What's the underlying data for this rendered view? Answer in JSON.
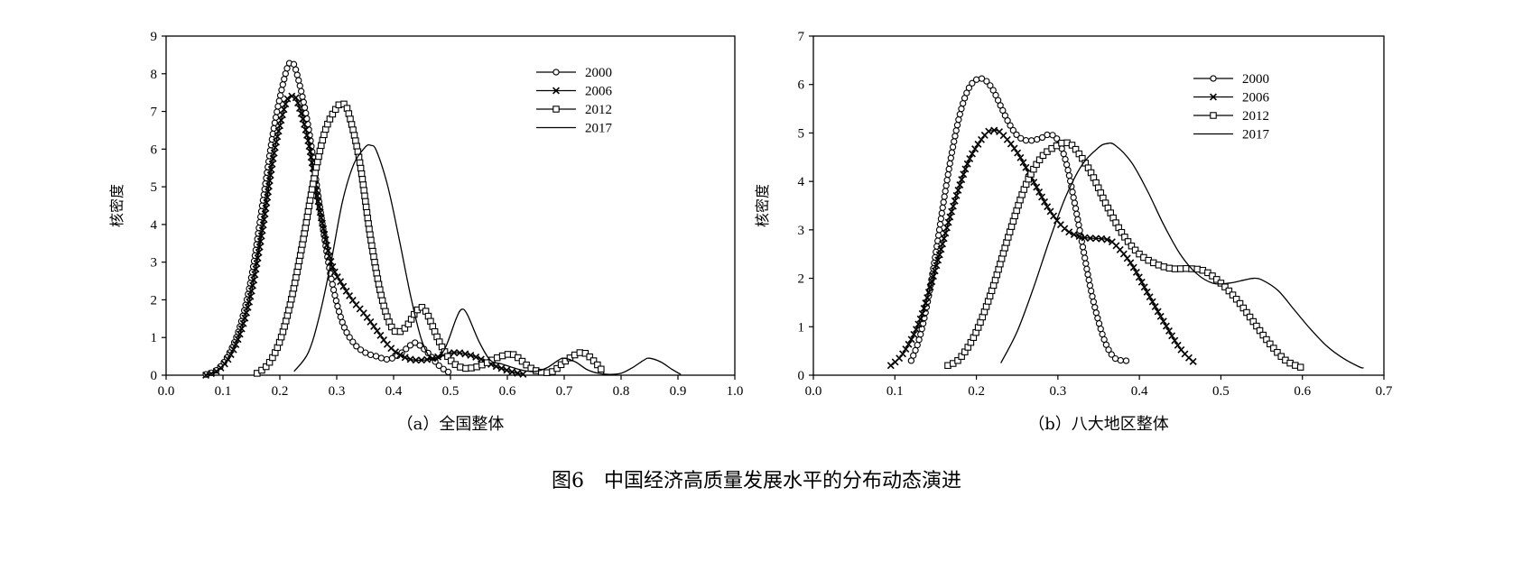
{
  "figure_caption": "图6　中国经济高质量发展水平的分布动态演进",
  "chart_data": [
    {
      "type": "line",
      "subcaption": "（a）全国整体",
      "ylabel": "核密度",
      "xlabel": "",
      "xlim": [
        0.0,
        1.0
      ],
      "ylim": [
        0,
        9
      ],
      "xticks": [
        "0.0",
        "0.1",
        "0.2",
        "0.3",
        "0.4",
        "0.5",
        "0.6",
        "0.7",
        "0.8",
        "0.9",
        "1.0"
      ],
      "yticks": [
        "0",
        "1",
        "2",
        "3",
        "4",
        "5",
        "6",
        "7",
        "8",
        "9"
      ],
      "grid": false,
      "legend_position": "top-right",
      "series": [
        {
          "name": "2000",
          "marker": "circle",
          "x": [
            0.07,
            0.09,
            0.11,
            0.13,
            0.15,
            0.17,
            0.19,
            0.21,
            0.22,
            0.23,
            0.25,
            0.27,
            0.29,
            0.31,
            0.33,
            0.35,
            0.37,
            0.39,
            0.41,
            0.43,
            0.44,
            0.46,
            0.48,
            0.5
          ],
          "y": [
            0.02,
            0.15,
            0.55,
            1.3,
            2.6,
            4.6,
            6.6,
            8.0,
            8.3,
            8.0,
            6.6,
            4.5,
            2.6,
            1.4,
            0.85,
            0.6,
            0.5,
            0.42,
            0.55,
            0.8,
            0.85,
            0.6,
            0.25,
            0.05
          ]
        },
        {
          "name": "2006",
          "marker": "x",
          "x": [
            0.07,
            0.09,
            0.11,
            0.13,
            0.15,
            0.17,
            0.19,
            0.21,
            0.22,
            0.23,
            0.25,
            0.27,
            0.29,
            0.31,
            0.33,
            0.35,
            0.37,
            0.39,
            0.41,
            0.43,
            0.45,
            0.47,
            0.49,
            0.51,
            0.53,
            0.55,
            0.57,
            0.59,
            0.61,
            0.63
          ],
          "y": [
            0.0,
            0.12,
            0.45,
            1.1,
            2.2,
            3.9,
            5.9,
            7.2,
            7.4,
            7.3,
            6.2,
            4.4,
            3.0,
            2.4,
            1.95,
            1.6,
            1.2,
            0.8,
            0.55,
            0.42,
            0.4,
            0.45,
            0.55,
            0.6,
            0.55,
            0.45,
            0.3,
            0.18,
            0.08,
            0.02
          ]
        },
        {
          "name": "2012",
          "marker": "square",
          "x": [
            0.16,
            0.18,
            0.2,
            0.22,
            0.24,
            0.26,
            0.28,
            0.3,
            0.31,
            0.32,
            0.34,
            0.36,
            0.38,
            0.4,
            0.42,
            0.44,
            0.45,
            0.46,
            0.48,
            0.5,
            0.52,
            0.54,
            0.56,
            0.58,
            0.6,
            0.61,
            0.62,
            0.64,
            0.66,
            0.68,
            0.7,
            0.72,
            0.73,
            0.74,
            0.76,
            0.77
          ],
          "y": [
            0.05,
            0.3,
            0.9,
            2.0,
            3.5,
            5.2,
            6.5,
            7.1,
            7.2,
            7.0,
            5.7,
            3.6,
            2.0,
            1.2,
            1.25,
            1.7,
            1.8,
            1.6,
            0.9,
            0.4,
            0.2,
            0.2,
            0.3,
            0.45,
            0.55,
            0.55,
            0.45,
            0.2,
            0.08,
            0.1,
            0.35,
            0.55,
            0.6,
            0.55,
            0.25,
            0.05
          ]
        },
        {
          "name": "2017",
          "marker": "none",
          "x": [
            0.225,
            0.25,
            0.27,
            0.29,
            0.31,
            0.33,
            0.35,
            0.36,
            0.37,
            0.39,
            0.41,
            0.43,
            0.45,
            0.47,
            0.49,
            0.51,
            0.52,
            0.53,
            0.55,
            0.57,
            0.59,
            0.61,
            0.63,
            0.65,
            0.67,
            0.69,
            0.7,
            0.72,
            0.74,
            0.76,
            0.78,
            0.8,
            0.82,
            0.84,
            0.85,
            0.87,
            0.89,
            0.905
          ],
          "y": [
            0.1,
            0.6,
            1.6,
            3.0,
            4.6,
            5.6,
            6.05,
            6.1,
            5.95,
            5.0,
            3.6,
            2.1,
            0.9,
            0.4,
            0.7,
            1.5,
            1.75,
            1.6,
            0.9,
            0.4,
            0.3,
            0.2,
            0.12,
            0.1,
            0.2,
            0.4,
            0.45,
            0.35,
            0.15,
            0.05,
            0.02,
            0.05,
            0.2,
            0.4,
            0.45,
            0.35,
            0.15,
            0.02
          ]
        }
      ]
    },
    {
      "type": "line",
      "subcaption": "（b）八大地区整体",
      "ylabel": "核密度",
      "xlabel": "",
      "xlim": [
        0.0,
        0.7
      ],
      "ylim": [
        0,
        7
      ],
      "xticks": [
        "0.0",
        "0.1",
        "0.2",
        "0.3",
        "0.4",
        "0.5",
        "0.6",
        "0.7"
      ],
      "yticks": [
        "0",
        "1",
        "2",
        "3",
        "4",
        "5",
        "6",
        "7"
      ],
      "grid": false,
      "legend_position": "top-right",
      "series": [
        {
          "name": "2000",
          "marker": "circle",
          "x": [
            0.12,
            0.13,
            0.14,
            0.15,
            0.16,
            0.17,
            0.18,
            0.19,
            0.2,
            0.21,
            0.22,
            0.23,
            0.24,
            0.25,
            0.26,
            0.27,
            0.28,
            0.29,
            0.3,
            0.31,
            0.32,
            0.33,
            0.34,
            0.35,
            0.36,
            0.37,
            0.38,
            0.385
          ],
          "y": [
            0.3,
            0.75,
            1.5,
            2.5,
            3.6,
            4.6,
            5.4,
            5.9,
            6.1,
            6.1,
            5.9,
            5.55,
            5.2,
            4.95,
            4.85,
            4.85,
            4.9,
            4.97,
            4.85,
            4.4,
            3.6,
            2.7,
            1.8,
            1.1,
            0.6,
            0.35,
            0.3,
            0.3
          ]
        },
        {
          "name": "2006",
          "marker": "x",
          "x": [
            0.095,
            0.11,
            0.13,
            0.15,
            0.17,
            0.19,
            0.21,
            0.22,
            0.23,
            0.25,
            0.27,
            0.29,
            0.31,
            0.33,
            0.35,
            0.36,
            0.37,
            0.39,
            0.41,
            0.43,
            0.45,
            0.47
          ],
          "y": [
            0.2,
            0.45,
            1.1,
            2.2,
            3.4,
            4.4,
            4.95,
            5.05,
            5.0,
            4.6,
            4.0,
            3.4,
            3.0,
            2.85,
            2.82,
            2.8,
            2.7,
            2.3,
            1.7,
            1.1,
            0.55,
            0.22
          ]
        },
        {
          "name": "2012",
          "marker": "square",
          "x": [
            0.165,
            0.18,
            0.2,
            0.22,
            0.24,
            0.26,
            0.28,
            0.3,
            0.31,
            0.32,
            0.34,
            0.36,
            0.38,
            0.4,
            0.42,
            0.44,
            0.46,
            0.48,
            0.5,
            0.52,
            0.54,
            0.56,
            0.58,
            0.6
          ],
          "y": [
            0.2,
            0.35,
            0.9,
            1.8,
            2.9,
            3.9,
            4.5,
            4.75,
            4.8,
            4.7,
            4.2,
            3.5,
            2.9,
            2.5,
            2.3,
            2.2,
            2.2,
            2.15,
            1.9,
            1.55,
            1.1,
            0.65,
            0.3,
            0.15
          ]
        },
        {
          "name": "2017",
          "marker": "none",
          "x": [
            0.23,
            0.25,
            0.27,
            0.29,
            0.31,
            0.33,
            0.35,
            0.36,
            0.37,
            0.39,
            0.41,
            0.43,
            0.45,
            0.47,
            0.49,
            0.51,
            0.53,
            0.54,
            0.55,
            0.57,
            0.59,
            0.61,
            0.63,
            0.65,
            0.67,
            0.675
          ],
          "y": [
            0.25,
            0.9,
            1.8,
            2.8,
            3.7,
            4.35,
            4.7,
            4.78,
            4.75,
            4.4,
            3.8,
            3.1,
            2.5,
            2.1,
            1.9,
            1.9,
            1.97,
            2.0,
            1.97,
            1.75,
            1.35,
            0.95,
            0.6,
            0.35,
            0.17,
            0.15
          ]
        }
      ]
    }
  ]
}
